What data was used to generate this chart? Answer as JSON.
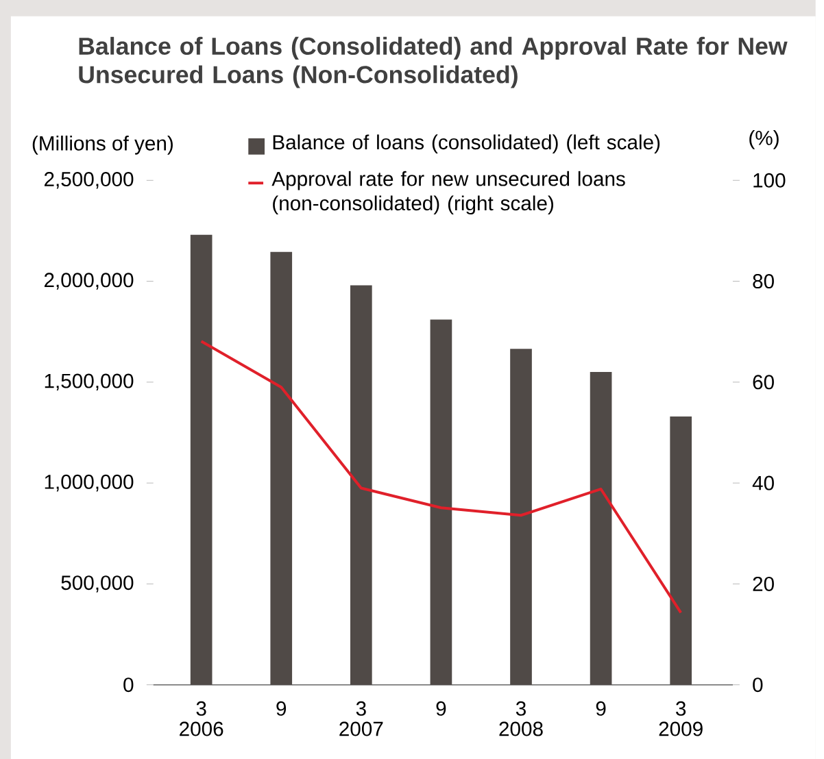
{
  "chart_data": {
    "type": "bar",
    "title": "Balance of Loans (Consolidated) and Approval Rate for New Unsecured Loans (Non-Consolidated)",
    "ylabel": "(Millions of yen)",
    "y2label": "(%)",
    "categories": [
      "3",
      "9",
      "3",
      "9",
      "3",
      "9",
      "3"
    ],
    "series": [
      {
        "name": "Balance of loans (consolidated) (left scale)",
        "color": "#504a47",
        "values": [
          2230000,
          2145000,
          1980000,
          1810000,
          1665000,
          1550000,
          1330000
        ]
      },
      {
        "name": "Approval rate for new unsecured loans (non-consolidated) (right scale)",
        "type": "line",
        "axis": "y2",
        "color": "#e0202a",
        "values": [
          68.1,
          59.0,
          39.0,
          35.1,
          33.6,
          38.8,
          14.3
        ]
      }
    ],
    "ylim": [
      0,
      2500000
    ],
    "yticks": [
      0,
      {
        "value": 500000,
        "label": "500,000"
      },
      {
        "value": 1000000,
        "label": "1,000,000"
      },
      {
        "value": 1500000,
        "label": "1,500,000"
      },
      {
        "value": 2000000,
        "label": "2,000,000"
      },
      {
        "value": 2500000,
        "label": "2,500,000"
      }
    ],
    "y2lim": [
      0,
      100
    ],
    "y2ticks": [
      0,
      20,
      40,
      60,
      80,
      100
    ],
    "legend": "top",
    "annotations": [
      "2006",
      "2007",
      "2008",
      "2009"
    ]
  }
}
